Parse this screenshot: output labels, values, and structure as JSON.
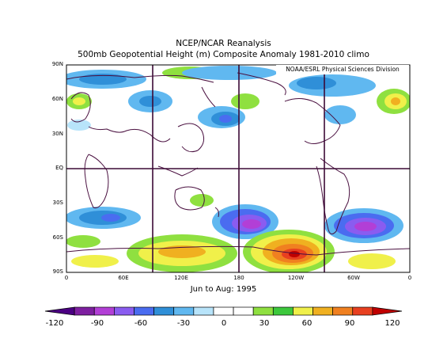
{
  "title": "NCEP/NCAR Reanalysis",
  "subtitle": "500mb Geopotential Height (m) Composite Anomaly 1981-2010 climo",
  "credit": "NOAA/ESRL Physical Sciences Division",
  "period": "Jun to Aug: 1995",
  "lat_labels": [
    "90N",
    "60N",
    "30N",
    "EQ",
    "30S",
    "60S",
    "90S"
  ],
  "lon_labels": [
    "0",
    "60E",
    "120E",
    "180",
    "120W",
    "60W",
    "0"
  ],
  "colorbar": {
    "labels": [
      "-120",
      "-90",
      "-60",
      "-30",
      "0",
      "30",
      "60",
      "90",
      "120"
    ],
    "colors": [
      "#4b0082",
      "#7e1fa0",
      "#b23fd6",
      "#8a5cf0",
      "#4a6cf0",
      "#2f8fd8",
      "#60b8f0",
      "#b8e4fa",
      "#ffffff",
      "#ffffff",
      "#8fe040",
      "#3cc83c",
      "#f0f04a",
      "#f0b020",
      "#f08020",
      "#e84020",
      "#c00000"
    ]
  }
}
